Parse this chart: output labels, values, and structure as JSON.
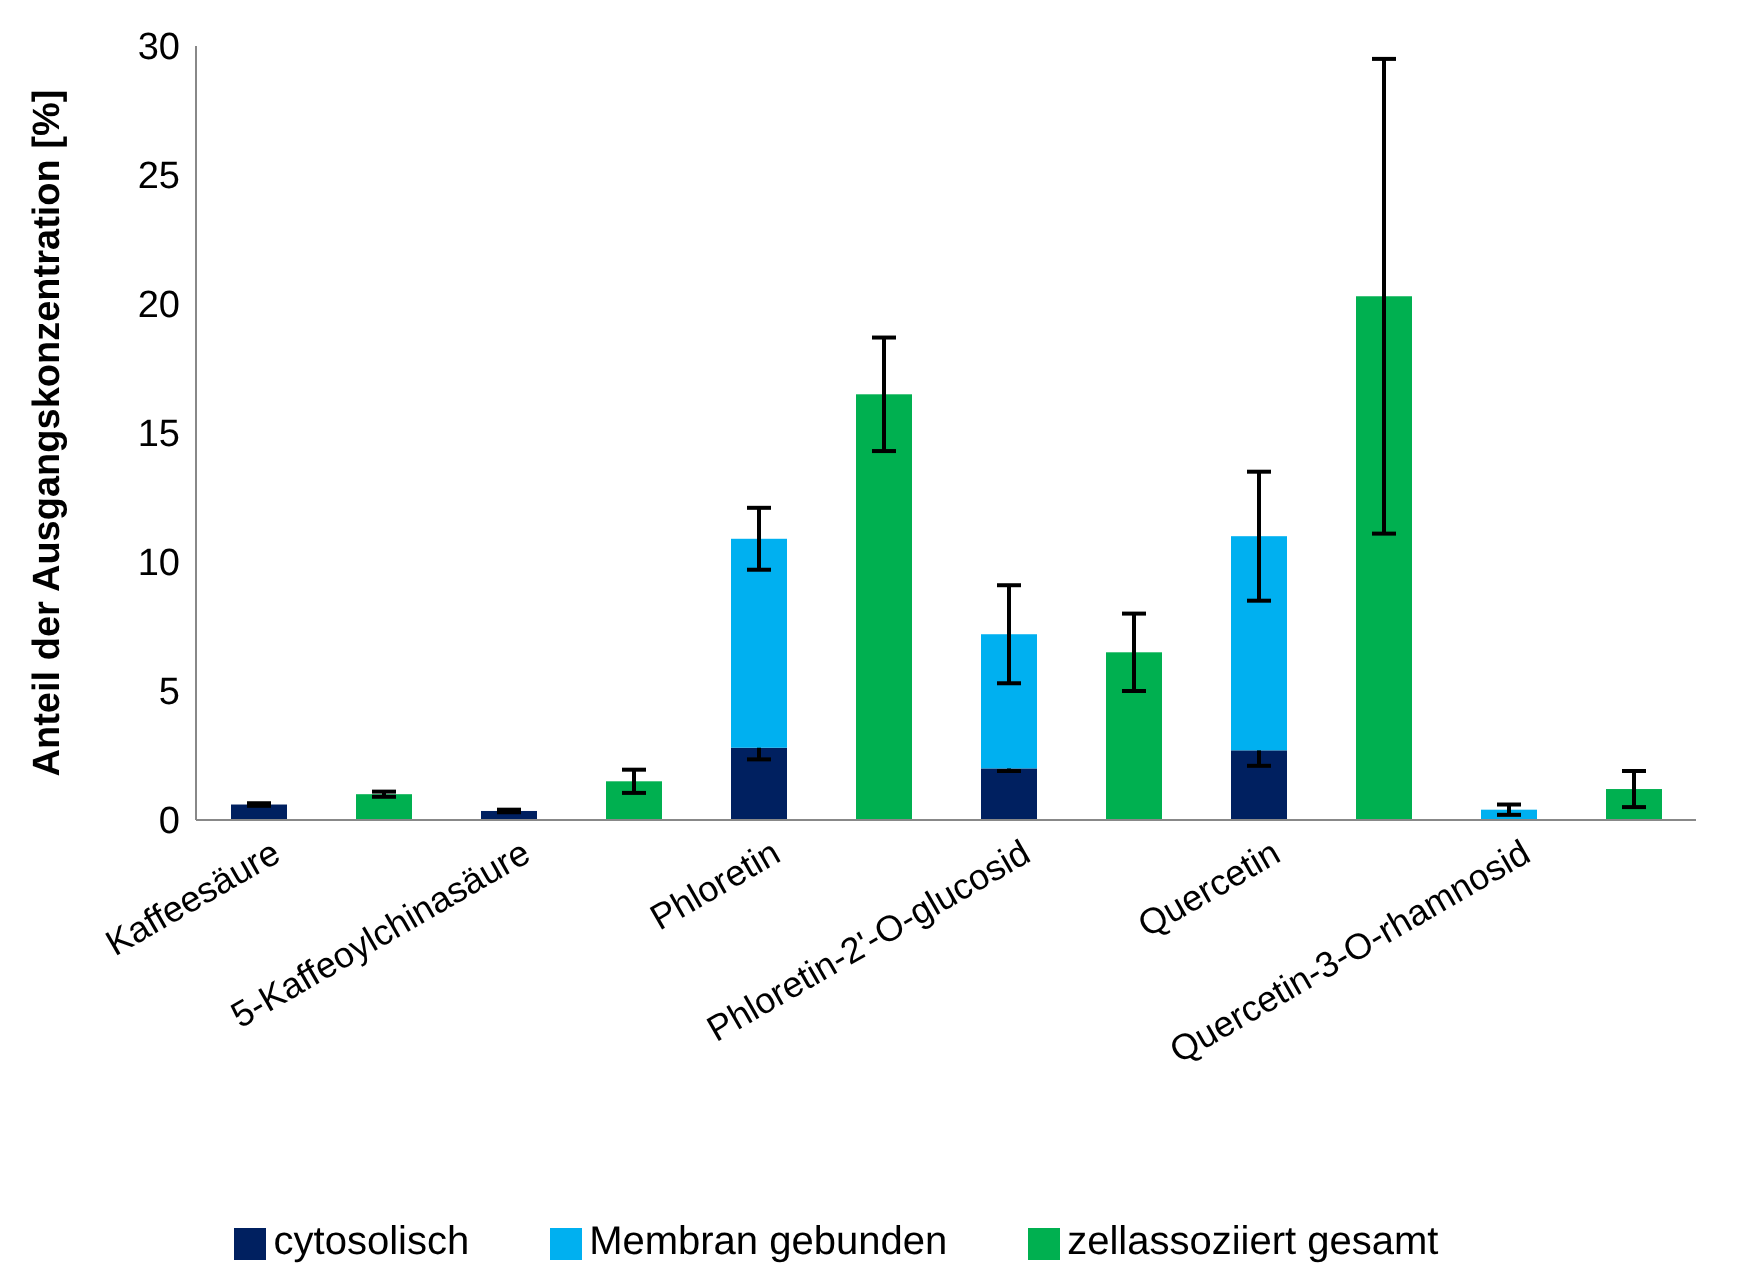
{
  "chart_data": {
    "type": "bar",
    "stacked": true,
    "ylabel": "Anteil der Ausgangskonzentration [%]",
    "categories": [
      "Kaffeesäure",
      null,
      "5-Kaffeoylchinasäure",
      null,
      "Phloretin",
      null,
      "Phloretin-2'-O-glucosid",
      null,
      "Quercetin",
      null,
      "Quercetin-3-O-rhamnosid",
      null
    ],
    "series": [
      {
        "name": "cytosolisch",
        "color": "#002060",
        "values": [
          0.6,
          null,
          0.35,
          null,
          2.8,
          null,
          2.0,
          null,
          2.7,
          null,
          null,
          null
        ],
        "errors": [
          0.05,
          null,
          0.05,
          null,
          0.45,
          null,
          0.1,
          null,
          0.6,
          null,
          null,
          null
        ]
      },
      {
        "name": "Membran gebunden",
        "color": "#00b0f0",
        "values": [
          null,
          null,
          null,
          null,
          8.1,
          null,
          5.2,
          null,
          8.3,
          null,
          0.4,
          null
        ],
        "errors": [
          null,
          null,
          null,
          null,
          1.2,
          null,
          1.9,
          null,
          2.5,
          null,
          0.2,
          null
        ]
      },
      {
        "name": "zellassoziiert gesamt",
        "color": "#00b050",
        "values": [
          null,
          1.0,
          null,
          1.5,
          null,
          16.5,
          null,
          6.5,
          null,
          20.3,
          null,
          1.2
        ],
        "errors": [
          null,
          0.1,
          null,
          0.45,
          null,
          2.2,
          null,
          1.5,
          null,
          9.2,
          null,
          0.7
        ]
      }
    ],
    "ylim": [
      0,
      30
    ],
    "yticks": [
      0,
      5,
      10,
      15,
      20,
      25,
      30
    ],
    "legend": "bottom"
  }
}
